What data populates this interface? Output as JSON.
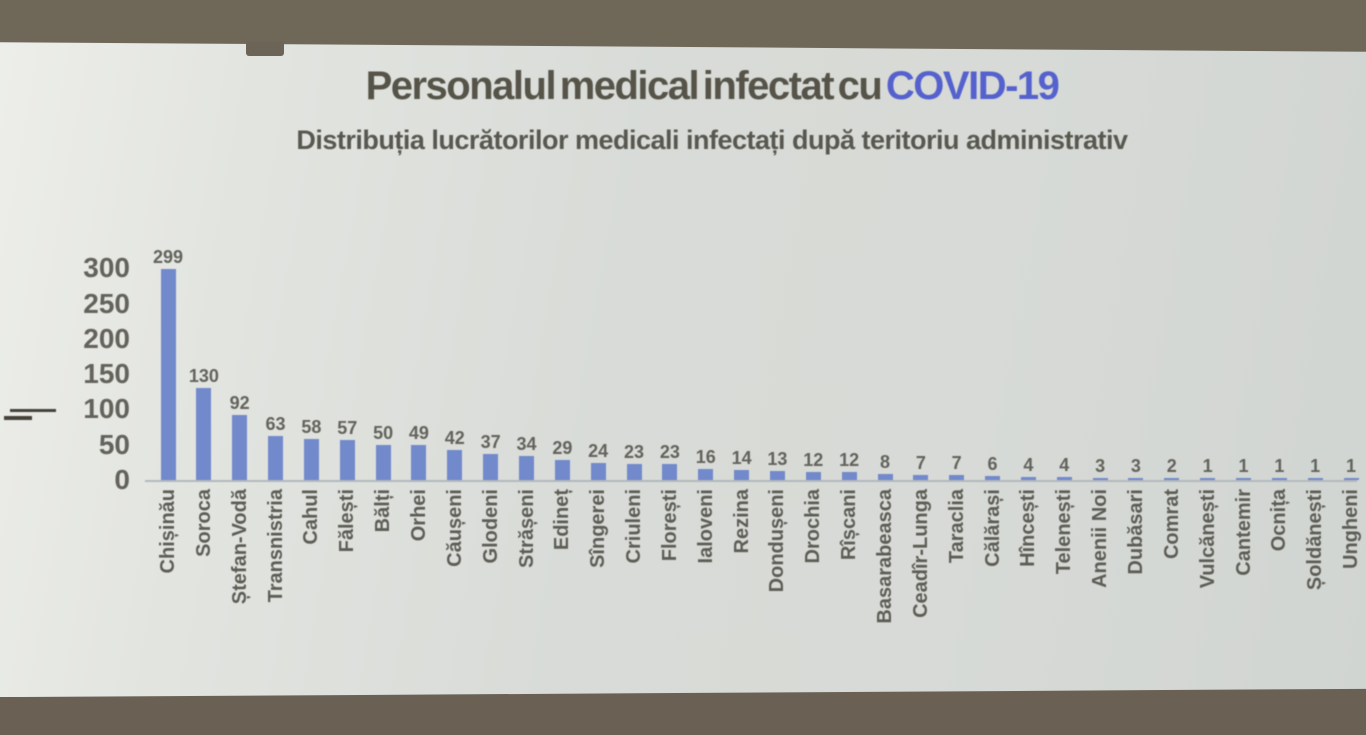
{
  "page": {
    "slide_number": "18"
  },
  "title": {
    "text_main": "Personalul medical infectat cu ",
    "text_highlight": "COVID-19",
    "highlight_color": "#5562cd"
  },
  "subtitle": "Distribuția lucrătorilor medicali infectați după teritoriu administrativ",
  "chart_data": {
    "type": "bar",
    "title": "Personalul medical infectat cu COVID-19",
    "subtitle": "Distribuția lucrătorilor medicali infectați după teritoriu administrativ",
    "categories": [
      "Chișinău",
      "Soroca",
      "Ștefan-Vodă",
      "Transnistria",
      "Cahul",
      "Fălești",
      "Bălți",
      "Orhei",
      "Căușeni",
      "Glodeni",
      "Strășeni",
      "Edineț",
      "Sîngerei",
      "Criuleni",
      "Florești",
      "Ialoveni",
      "Rezina",
      "Dondușeni",
      "Drochia",
      "Rîșcani",
      "Basarabeasca",
      "Ceadîr-Lunga",
      "Taraclia",
      "Călărași",
      "Hîncești",
      "Telenești",
      "Anenii Noi",
      "Dubăsari",
      "Comrat",
      "Vulcănești",
      "Cantemir",
      "Ocnița",
      "Șoldănești",
      "Ungheni"
    ],
    "values": [
      299,
      130,
      92,
      63,
      58,
      57,
      50,
      49,
      42,
      37,
      34,
      29,
      24,
      23,
      23,
      16,
      14,
      13,
      12,
      12,
      8,
      7,
      7,
      6,
      4,
      4,
      3,
      3,
      2,
      1,
      1,
      1,
      1,
      1
    ],
    "xlabel": "",
    "ylabel": "",
    "ylim": [
      0,
      300
    ],
    "yticks": [
      0,
      50,
      100,
      150,
      200,
      250,
      300
    ],
    "grid": false,
    "legend": "none",
    "data_labels": true,
    "bar_color": "#7289cb",
    "label_color": "#63635c"
  }
}
